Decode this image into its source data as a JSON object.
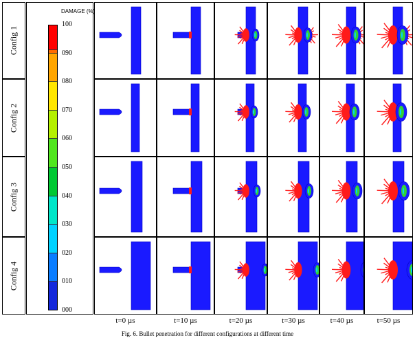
{
  "legend": {
    "title": "DAMAGE (%)",
    "ticks": [
      "100",
      "090",
      "080",
      "070",
      "060",
      "050",
      "040",
      "030",
      "020",
      "010",
      "000"
    ],
    "colors": [
      "#ff0000",
      "#ff6a00",
      "#ffa500",
      "#ffe600",
      "#b4f000",
      "#50e61e",
      "#00c832",
      "#00e6c8",
      "#00d2ff",
      "#0a7dff",
      "#1428dc",
      "#0000ff"
    ]
  },
  "rows": [
    {
      "label": "Config 1"
    },
    {
      "label": "Config 2"
    },
    {
      "label": "Config 3"
    },
    {
      "label": "Config 4"
    }
  ],
  "times": [
    "t=0 µs",
    "t=10 µs",
    "t=20 µs",
    "t=30 µs",
    "t=40 µs",
    "t=50 µs"
  ],
  "caption": "Fig. 6.  Bullet penetration for different configurations at different time",
  "colors": {
    "plate": "#1a1aff",
    "plate_edge": "#0000c8",
    "damage": "#ff1a1a",
    "damage_core": "#32d232",
    "cyan": "#00d2ff"
  }
}
